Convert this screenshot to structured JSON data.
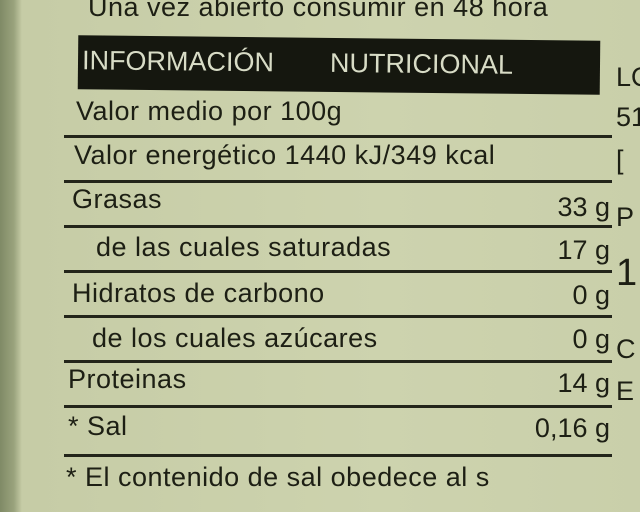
{
  "top_text": "Una vez abierto consumir en 48 hora",
  "table": {
    "title_parts": [
      "INFORMACIÓN",
      "NUTRICIONAL"
    ],
    "basis": "Valor medio por 100g",
    "energy": "Valor energético 1440 kJ/349 kcal",
    "rows": [
      {
        "label": "Grasas",
        "value": "33 g"
      },
      {
        "label": "de las cuales saturadas",
        "value": "17 g"
      },
      {
        "label": "Hidratos de carbono",
        "value": "0 g"
      },
      {
        "label": "de los cuales azúcares",
        "value": "0 g"
      },
      {
        "label": "Proteinas",
        "value": "14 g"
      },
      {
        "label": "* Sal",
        "value": "0,16 g"
      }
    ]
  },
  "footnote": "* El contenido de  sal obedece al s",
  "right_fragments": [
    "LO",
    "51",
    "[",
    "P",
    "1",
    "C",
    "E"
  ]
}
